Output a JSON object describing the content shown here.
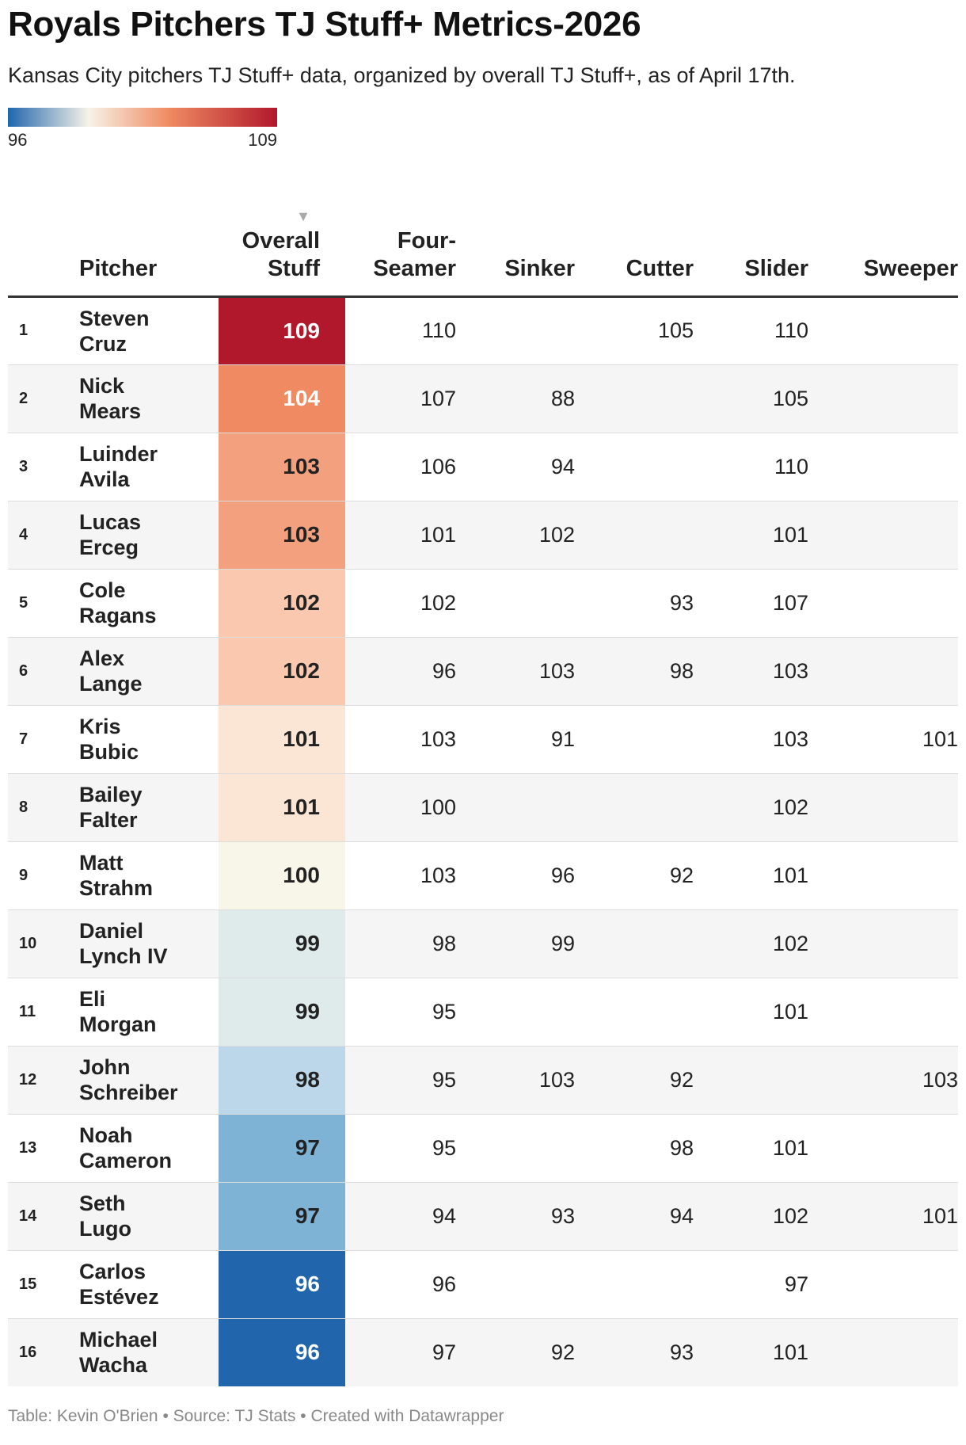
{
  "title": "Royals Pitchers TJ Stuff+ Metrics-2026",
  "subtitle": "Kansas City pitchers TJ Stuff+ data, organized by overall TJ Stuff+, as of April 17th.",
  "legend": {
    "min": "96",
    "max": "109",
    "colors": [
      "#2166ac",
      "#f7f3e8",
      "#ef8a62",
      "#b2182b"
    ]
  },
  "sort_icon": "sort-descending-icon",
  "chart_data": {
    "type": "table",
    "columns": [
      "",
      "Pitcher",
      "Overall Stuff",
      "Four-Seamer",
      "Sinker",
      "Cutter",
      "Slider",
      "Sweeper"
    ],
    "header_lines": {
      "overall": [
        "Overall",
        "Stuff"
      ],
      "fourseam": [
        "Four-",
        "Seamer"
      ]
    },
    "color_scale": {
      "column": "Overall Stuff",
      "min": 96,
      "max": 109
    },
    "rows": [
      {
        "rank": "1",
        "first": "Steven",
        "last": "Cruz",
        "overall": "109",
        "overall_bg": "#b2182b",
        "overall_fg": "#ffffff",
        "fs": "110",
        "si": "",
        "ct": "105",
        "sl": "110",
        "sw": ""
      },
      {
        "rank": "2",
        "first": "Nick",
        "last": "Mears",
        "overall": "104",
        "overall_bg": "#ef8a62",
        "overall_fg": "#ffffff",
        "fs": "107",
        "si": "88",
        "ct": "",
        "sl": "105",
        "sw": ""
      },
      {
        "rank": "3",
        "first": "Luinder",
        "last": "Avila",
        "overall": "103",
        "overall_bg": "#f2a07e",
        "overall_fg": "#222222",
        "fs": "106",
        "si": "94",
        "ct": "",
        "sl": "110",
        "sw": ""
      },
      {
        "rank": "4",
        "first": "Lucas",
        "last": "Erceg",
        "overall": "103",
        "overall_bg": "#f2a07e",
        "overall_fg": "#222222",
        "fs": "101",
        "si": "102",
        "ct": "",
        "sl": "101",
        "sw": ""
      },
      {
        "rank": "5",
        "first": "Cole",
        "last": "Ragans",
        "overall": "102",
        "overall_bg": "#f9c8ae",
        "overall_fg": "#222222",
        "fs": "102",
        "si": "",
        "ct": "93",
        "sl": "107",
        "sw": ""
      },
      {
        "rank": "6",
        "first": "Alex",
        "last": "Lange",
        "overall": "102",
        "overall_bg": "#f9c8ae",
        "overall_fg": "#222222",
        "fs": "96",
        "si": "103",
        "ct": "98",
        "sl": "103",
        "sw": ""
      },
      {
        "rank": "7",
        "first": "Kris",
        "last": "Bubic",
        "overall": "101",
        "overall_bg": "#fbe6d6",
        "overall_fg": "#222222",
        "fs": "103",
        "si": "91",
        "ct": "",
        "sl": "103",
        "sw": "101"
      },
      {
        "rank": "8",
        "first": "Bailey",
        "last": "Falter",
        "overall": "101",
        "overall_bg": "#fbe6d6",
        "overall_fg": "#222222",
        "fs": "100",
        "si": "",
        "ct": "",
        "sl": "102",
        "sw": ""
      },
      {
        "rank": "9",
        "first": "Matt",
        "last": "Strahm",
        "overall": "100",
        "overall_bg": "#f8f6e8",
        "overall_fg": "#222222",
        "fs": "103",
        "si": "96",
        "ct": "92",
        "sl": "101",
        "sw": ""
      },
      {
        "rank": "10",
        "first": "Daniel",
        "last": "Lynch IV",
        "overall": "99",
        "overall_bg": "#deebea",
        "overall_fg": "#222222",
        "fs": "98",
        "si": "99",
        "ct": "",
        "sl": "102",
        "sw": ""
      },
      {
        "rank": "11",
        "first": "Eli",
        "last": "Morgan",
        "overall": "99",
        "overall_bg": "#deebea",
        "overall_fg": "#222222",
        "fs": "95",
        "si": "",
        "ct": "",
        "sl": "101",
        "sw": ""
      },
      {
        "rank": "12",
        "first": "John",
        "last": "Schreiber",
        "overall": "98",
        "overall_bg": "#bcd7ea",
        "overall_fg": "#222222",
        "fs": "95",
        "si": "103",
        "ct": "92",
        "sl": "",
        "sw": "103"
      },
      {
        "rank": "13",
        "first": "Noah",
        "last": "Cameron",
        "overall": "97",
        "overall_bg": "#7fb3d6",
        "overall_fg": "#222222",
        "fs": "95",
        "si": "",
        "ct": "98",
        "sl": "101",
        "sw": ""
      },
      {
        "rank": "14",
        "first": "Seth",
        "last": "Lugo",
        "overall": "97",
        "overall_bg": "#7fb3d6",
        "overall_fg": "#222222",
        "fs": "94",
        "si": "93",
        "ct": "94",
        "sl": "102",
        "sw": "101"
      },
      {
        "rank": "15",
        "first": "Carlos",
        "last": "Estévez",
        "overall": "96",
        "overall_bg": "#2166ac",
        "overall_fg": "#ffffff",
        "fs": "96",
        "si": "",
        "ct": "",
        "sl": "97",
        "sw": ""
      },
      {
        "rank": "16",
        "first": "Michael",
        "last": "Wacha",
        "overall": "96",
        "overall_bg": "#2166ac",
        "overall_fg": "#ffffff",
        "fs": "97",
        "si": "92",
        "ct": "93",
        "sl": "101",
        "sw": ""
      }
    ]
  },
  "footer": "Table: Kevin O'Brien • Source: TJ Stats • Created with Datawrapper"
}
